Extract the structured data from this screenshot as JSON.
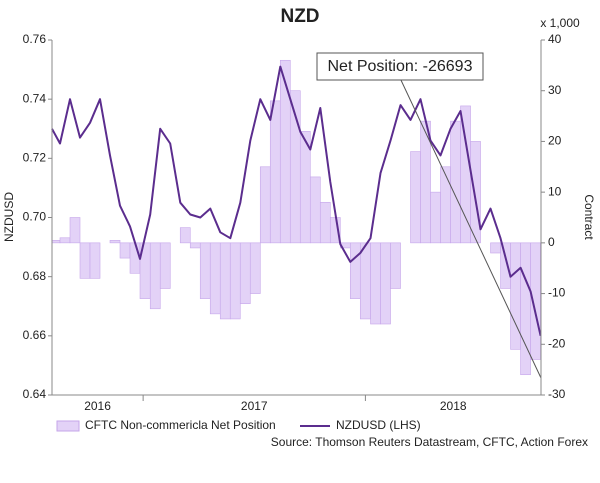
{
  "chart_data": {
    "type": "area-line",
    "title": "NZD",
    "y_label": "NZDUSD",
    "y2_label": "Contract",
    "y2_unit": "x 1,000",
    "source": "Source: Thomson Reuters Datastream, CFTC, Action Forex",
    "annotation": "Net Position: -26693",
    "x": [
      2016.59,
      2016.626,
      2016.671,
      2016.716,
      2016.761,
      2016.806,
      2016.851,
      2016.896,
      2016.941,
      2016.986,
      2017.032,
      2017.077,
      2017.122,
      2017.167,
      2017.212,
      2017.257,
      2017.302,
      2017.347,
      2017.392,
      2017.437,
      2017.482,
      2017.527,
      2017.572,
      2017.617,
      2017.662,
      2017.707,
      2017.752,
      2017.797,
      2017.842,
      2017.887,
      2017.932,
      2017.977,
      2018.023,
      2018.068,
      2018.113,
      2018.158,
      2018.203,
      2018.248,
      2018.293,
      2018.338,
      2018.383,
      2018.428,
      2018.473,
      2018.518,
      2018.563,
      2018.608,
      2018.653,
      2018.698,
      2018.743,
      2018.788
    ],
    "xlim": [
      2016.59,
      2018.79
    ],
    "xticks": [
      2016,
      2017,
      2018
    ],
    "ylim": [
      0.64,
      0.76
    ],
    "yticks": [
      0.64,
      0.66,
      0.68,
      {
        "value": 0.7,
        "label": "0.70"
      },
      0.72,
      0.74,
      0.76
    ],
    "y2lim": [
      -30,
      40
    ],
    "y2ticks": [
      40,
      30,
      20,
      10,
      0,
      -10,
      -20,
      -30
    ],
    "series": [
      {
        "name": "CFTC Non-commericla Net Position",
        "kind": "area",
        "axis": "y2",
        "color": "#e3d2f7",
        "edge_color": "#c6a6ea",
        "values": [
          0.5,
          1,
          5,
          -7,
          -7,
          0,
          0.5,
          -3,
          -6,
          -11,
          -13,
          -9,
          0,
          3,
          -1,
          -11,
          -14,
          -15,
          -15,
          -12,
          -10,
          15,
          28,
          36,
          30,
          22,
          13,
          8,
          5,
          -1,
          -11,
          -15,
          -16,
          -16,
          -9,
          0,
          18,
          24,
          10,
          15,
          24,
          27,
          20,
          0,
          -2,
          -9,
          -21,
          -26,
          -23,
          -17
        ]
      },
      {
        "name": "NZDUSD (LHS)",
        "kind": "line",
        "color": "#5b2d8e",
        "values": [
          0.73,
          0.725,
          0.74,
          0.727,
          0.732,
          0.74,
          0.721,
          0.704,
          0.697,
          0.686,
          0.701,
          0.73,
          0.725,
          0.705,
          0.701,
          0.7,
          0.703,
          0.695,
          0.693,
          0.705,
          0.726,
          0.74,
          0.733,
          0.751,
          0.74,
          0.729,
          0.723,
          0.737,
          0.712,
          0.691,
          0.685,
          0.688,
          0.693,
          0.715,
          0.726,
          0.738,
          0.733,
          0.74,
          0.726,
          0.721,
          0.73,
          0.736,
          0.716,
          0.696,
          0.703,
          0.693,
          0.68,
          0.683,
          0.675,
          0.66
        ]
      }
    ]
  }
}
